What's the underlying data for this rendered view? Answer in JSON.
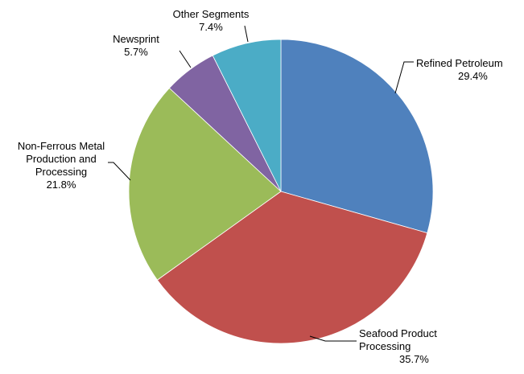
{
  "chart_data": {
    "type": "pie",
    "title": "",
    "start_angle_deg": 0,
    "direction": "clockwise",
    "legend": "none",
    "slices": [
      {
        "name": "refined-petroleum",
        "label_lines": [
          "Refined Petroleum"
        ],
        "value": 29.4,
        "value_label": "29.4%",
        "color": "#4F81BD"
      },
      {
        "name": "seafood-product-processing",
        "label_lines": [
          "Seafood Product",
          "Processing"
        ],
        "value": 35.7,
        "value_label": "35.7%",
        "color": "#C0504D"
      },
      {
        "name": "non-ferrous-metal",
        "label_lines": [
          "Non-Ferrous Metal",
          "Production and",
          "Processing"
        ],
        "value": 21.8,
        "value_label": "21.8%",
        "color": "#9BBB59"
      },
      {
        "name": "newsprint",
        "label_lines": [
          "Newsprint"
        ],
        "value": 5.7,
        "value_label": "5.7%",
        "color": "#8064A2"
      },
      {
        "name": "other-segments",
        "label_lines": [
          "Other Segments"
        ],
        "value": 7.4,
        "value_label": "7.4%",
        "color": "#4BACC6"
      }
    ]
  }
}
